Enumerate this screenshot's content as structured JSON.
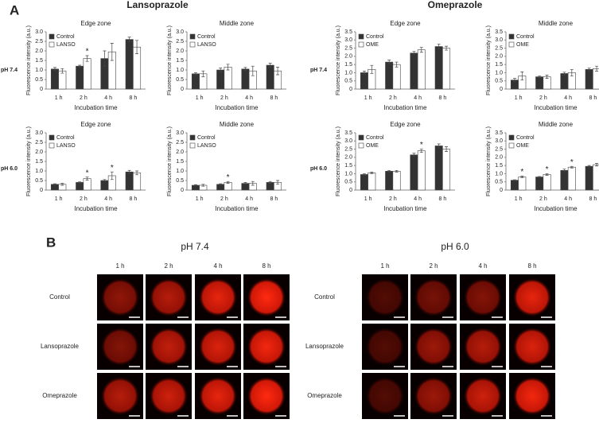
{
  "figure": {
    "panel_a_label": "A",
    "groups": [
      "Lansoprazole",
      "Omeprazole"
    ],
    "row_labels": [
      "pH 7.4",
      "pH 6.0"
    ],
    "panel_b": {
      "label": "B",
      "conditions": [
        "pH 7.4",
        "pH 6.0"
      ],
      "times": [
        "1 h",
        "2 h",
        "4 h",
        "8 h"
      ],
      "treatments": [
        "Control",
        "Lansoprazole",
        "Omeprazole"
      ]
    }
  },
  "chart_data": [
    {
      "type": "bar",
      "title": "Edge zone",
      "xlabel": "Incubation time",
      "ylabel": "Fluorescence intensity (a.u.)",
      "legend": "upper left",
      "categories": [
        "1 h",
        "2 h",
        "4 h",
        "8 h"
      ],
      "series": [
        {
          "name": "Control",
          "color": "#333333",
          "values": [
            1.05,
            1.2,
            1.6,
            2.6
          ],
          "errors": [
            0.08,
            0.05,
            0.4,
            0.12
          ]
        },
        {
          "name": "LANSO",
          "color": "#ffffff",
          "values": [
            0.95,
            1.6,
            1.95,
            2.2
          ],
          "errors": [
            0.12,
            0.15,
            0.45,
            0.35
          ]
        }
      ],
      "significance": [
        null,
        "*",
        null,
        null
      ],
      "ylim": [
        0,
        3
      ],
      "yticks": [
        0,
        0.5,
        {
          "value": 1,
          "label": "1.0"
        },
        1.5,
        {
          "value": 2,
          "label": "2.0"
        },
        2.5,
        {
          "value": 3,
          "label": "3.0"
        }
      ]
    },
    {
      "type": "bar",
      "title": "Middle zone",
      "xlabel": "Incubation time",
      "ylabel": "Fluorescence intensity (a.u.)",
      "legend": "upper left",
      "categories": [
        "1 h",
        "2 h",
        "4 h",
        "8 h"
      ],
      "series": [
        {
          "name": "Control",
          "color": "#333333",
          "values": [
            0.8,
            1.0,
            1.05,
            1.25
          ],
          "errors": [
            0.05,
            0.1,
            0.08,
            0.1
          ]
        },
        {
          "name": "LANSO",
          "color": "#ffffff",
          "values": [
            0.8,
            1.15,
            0.95,
            0.95
          ],
          "errors": [
            0.15,
            0.15,
            0.25,
            0.2
          ]
        }
      ],
      "significance": [
        null,
        null,
        null,
        null
      ],
      "ylim": [
        0,
        3
      ],
      "yticks": [
        0,
        0.5,
        {
          "value": 1,
          "label": "1.0"
        },
        1.5,
        {
          "value": 2,
          "label": "2.0"
        },
        2.5,
        {
          "value": 3,
          "label": "3.0"
        }
      ]
    },
    {
      "type": "bar",
      "title": "Edge zone",
      "xlabel": "Incubation time",
      "ylabel": "Fluorescence intensity (a.u.)",
      "legend": "upper left",
      "categories": [
        "1 h",
        "2 h",
        "4 h",
        "8 h"
      ],
      "series": [
        {
          "name": "Control",
          "color": "#333333",
          "values": [
            1.0,
            1.65,
            2.2,
            2.6
          ],
          "errors": [
            0.1,
            0.12,
            0.1,
            0.15
          ]
        },
        {
          "name": "OME",
          "color": "#ffffff",
          "values": [
            1.2,
            1.5,
            2.4,
            2.5
          ],
          "errors": [
            0.25,
            0.15,
            0.15,
            0.12
          ]
        }
      ],
      "significance": [
        null,
        null,
        null,
        null
      ],
      "ylim": [
        0,
        3.5
      ],
      "yticks": [
        0,
        0.5,
        {
          "value": 1,
          "label": "1.0"
        },
        1.5,
        {
          "value": 2,
          "label": "2.0"
        },
        2.5,
        {
          "value": 3,
          "label": "3.0"
        },
        3.5
      ]
    },
    {
      "type": "bar",
      "title": "Middle zone",
      "xlabel": "Incubation time",
      "ylabel": "Fluorescence intensity (a.u.)",
      "legend": "upper left",
      "categories": [
        "1 h",
        "2 h",
        "4 h",
        "8 h"
      ],
      "series": [
        {
          "name": "Control",
          "color": "#333333",
          "values": [
            0.55,
            0.75,
            0.95,
            1.2
          ],
          "errors": [
            0.1,
            0.05,
            0.08,
            0.08
          ]
        },
        {
          "name": "OME",
          "color": "#ffffff",
          "values": [
            0.8,
            0.75,
            1.0,
            1.25
          ],
          "errors": [
            0.25,
            0.1,
            0.2,
            0.15
          ]
        }
      ],
      "significance": [
        null,
        null,
        null,
        null
      ],
      "ylim": [
        0,
        3.5
      ],
      "yticks": [
        0,
        0.5,
        {
          "value": 1,
          "label": "1.0"
        },
        1.5,
        {
          "value": 2,
          "label": "2.0"
        },
        2.5,
        {
          "value": 3,
          "label": "3.0"
        },
        3.5
      ]
    },
    {
      "type": "bar",
      "title": "Edge zone",
      "xlabel": "Incubation time",
      "ylabel": "Fluorescence intensity (a.u.)",
      "legend": "upper left",
      "categories": [
        "1 h",
        "2 h",
        "4 h",
        "8 h"
      ],
      "series": [
        {
          "name": "Control",
          "color": "#333333",
          "values": [
            0.3,
            0.4,
            0.5,
            0.95
          ],
          "errors": [
            0.03,
            0.03,
            0.05,
            0.08
          ]
        },
        {
          "name": "LANSO",
          "color": "#ffffff",
          "values": [
            0.3,
            0.6,
            0.75,
            0.9
          ],
          "errors": [
            0.05,
            0.08,
            0.2,
            0.1
          ]
        }
      ],
      "significance": [
        null,
        "*",
        "*",
        null
      ],
      "ylim": [
        0,
        3
      ],
      "yticks": [
        0,
        0.5,
        {
          "value": 1,
          "label": "1.0"
        },
        1.5,
        {
          "value": 2,
          "label": "2.0"
        },
        2.5,
        {
          "value": 3,
          "label": "3.0"
        }
      ]
    },
    {
      "type": "bar",
      "title": "Middle zone",
      "xlabel": "Incubation time",
      "ylabel": "Fluorescence intensity (a.u.)",
      "legend": "upper left",
      "categories": [
        "1 h",
        "2 h",
        "4 h",
        "8 h"
      ],
      "series": [
        {
          "name": "Control",
          "color": "#333333",
          "values": [
            0.25,
            0.3,
            0.35,
            0.4
          ],
          "errors": [
            0.03,
            0.03,
            0.05,
            0.05
          ]
        },
        {
          "name": "LANSO",
          "color": "#ffffff",
          "values": [
            0.25,
            0.4,
            0.35,
            0.4
          ],
          "errors": [
            0.05,
            0.05,
            0.1,
            0.1
          ]
        }
      ],
      "significance": [
        null,
        "*",
        null,
        null
      ],
      "ylim": [
        0,
        3
      ],
      "yticks": [
        0,
        0.5,
        {
          "value": 1,
          "label": "1.0"
        },
        1.5,
        {
          "value": 2,
          "label": "2.0"
        },
        2.5,
        {
          "value": 3,
          "label": "3.0"
        }
      ]
    },
    {
      "type": "bar",
      "title": "Edge zone",
      "xlabel": "Incubation time",
      "ylabel": "Fluorescence intensity (a.u.)",
      "legend": "upper left",
      "categories": [
        "1 h",
        "2 h",
        "4 h",
        "8 h"
      ],
      "series": [
        {
          "name": "Control",
          "color": "#333333",
          "values": [
            0.95,
            1.15,
            2.15,
            2.7
          ],
          "errors": [
            0.05,
            0.05,
            0.1,
            0.12
          ]
        },
        {
          "name": "OME",
          "color": "#ffffff",
          "values": [
            1.05,
            1.15,
            2.4,
            2.5
          ],
          "errors": [
            0.05,
            0.05,
            0.1,
            0.15
          ]
        }
      ],
      "significance": [
        null,
        null,
        "*",
        null
      ],
      "ylim": [
        0,
        3.5
      ],
      "yticks": [
        0,
        0.5,
        {
          "value": 1,
          "label": "1.0"
        },
        1.5,
        {
          "value": 2,
          "label": "2.0"
        },
        2.5,
        {
          "value": 3,
          "label": "3.0"
        },
        3.5
      ]
    },
    {
      "type": "bar",
      "title": "Middle zone",
      "xlabel": "Incubation time",
      "ylabel": "Fluorescence intensity (a.u.)",
      "legend": "upper left",
      "categories": [
        "1 h",
        "2 h",
        "4 h",
        "8 h"
      ],
      "series": [
        {
          "name": "Control",
          "color": "#333333",
          "values": [
            0.6,
            0.8,
            1.2,
            1.45
          ],
          "errors": [
            0.03,
            0.03,
            0.08,
            0.05
          ]
        },
        {
          "name": "OME",
          "color": "#ffffff",
          "values": [
            0.8,
            0.95,
            1.4,
            1.55
          ],
          "errors": [
            0.05,
            0.05,
            0.05,
            0.08
          ]
        }
      ],
      "significance": [
        "*",
        "*",
        "*",
        null
      ],
      "ylim": [
        0,
        3.5
      ],
      "yticks": [
        0,
        0.5,
        {
          "value": 1,
          "label": "1.0"
        },
        1.5,
        {
          "value": 2,
          "label": "2.0"
        },
        2.5,
        {
          "value": 3,
          "label": "3.0"
        },
        3.5
      ]
    }
  ]
}
